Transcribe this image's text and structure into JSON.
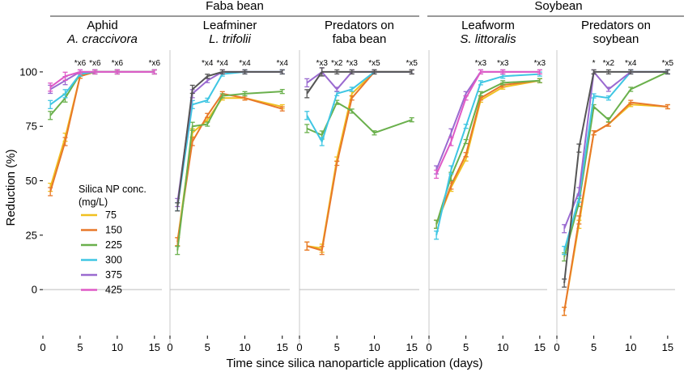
{
  "figure": {
    "crop_titles": [
      "Faba bean",
      "Soybean"
    ],
    "ylabel": "Reduction (%)",
    "xlabel": "Time since silica nanoparticle application (days)",
    "legend_title": [
      "Silica NP conc.",
      "(mg/L)"
    ]
  },
  "chart_data": [
    {
      "type": "line",
      "title": [
        "Aphid",
        "A. craccivora"
      ],
      "crop": "Faba bean",
      "ylim": [
        -20,
        110
      ],
      "xlim": [
        0,
        16
      ],
      "yticks": [
        "0",
        "25",
        "50",
        "75",
        "100"
      ],
      "xticks": [
        "0",
        "5",
        "10",
        "15"
      ],
      "x": [
        1,
        3,
        5,
        7,
        10,
        15
      ],
      "series": [
        {
          "name": "75",
          "color": "#f0c020",
          "values": [
            47,
            70,
            98,
            100,
            100,
            100
          ]
        },
        {
          "name": "150",
          "color": "#e8782a",
          "values": [
            45,
            68,
            98,
            100,
            100,
            100
          ]
        },
        {
          "name": "225",
          "color": "#6ab04c",
          "values": [
            80,
            88,
            99,
            100,
            100,
            100
          ]
        },
        {
          "name": "300",
          "color": "#3fc6e3",
          "values": [
            85,
            90,
            99,
            100,
            100,
            100
          ]
        },
        {
          "name": "375",
          "color": "#9a6ad0",
          "values": [
            92,
            96,
            100,
            100,
            100,
            100
          ]
        },
        {
          "name": "425",
          "color": "#df5ac6",
          "values": [
            93,
            98,
            100,
            100,
            100,
            100
          ]
        }
      ],
      "annotations": [
        "*x6",
        "*x6",
        "*x6",
        "*x6"
      ]
    },
    {
      "type": "line",
      "title": [
        "Leafminer",
        "L. trifolii"
      ],
      "crop": "Faba bean",
      "ylim": [
        -20,
        110
      ],
      "xlim": [
        0,
        16
      ],
      "yticks": [],
      "xticks": [
        "0",
        "5",
        "10",
        "15"
      ],
      "x": [
        1,
        3,
        5,
        7,
        10,
        15
      ],
      "series": [
        {
          "name": "75",
          "color": "#f0c020",
          "values": [
            22,
            72,
            78,
            88,
            88,
            84
          ]
        },
        {
          "name": "150",
          "color": "#e8782a",
          "values": [
            22,
            68,
            80,
            90,
            88,
            83
          ]
        },
        {
          "name": "225",
          "color": "#6ab04c",
          "values": [
            18,
            75,
            76,
            89,
            90,
            91
          ]
        },
        {
          "name": "300",
          "color": "#3fc6e3",
          "values": [
            38,
            85,
            87,
            99,
            100,
            100
          ]
        },
        {
          "name": "375",
          "color": "#9a6ad0",
          "values": [
            40,
            90,
            96,
            100,
            100,
            100
          ]
        },
        {
          "name": "425",
          "color": "#555555",
          "values": [
            38,
            92,
            98,
            100,
            100,
            100
          ]
        }
      ],
      "annotations": [
        "*x4",
        "*x4",
        "*x4",
        "*x4"
      ]
    },
    {
      "type": "line",
      "title": [
        "Predators on",
        "faba bean"
      ],
      "crop": "Faba bean",
      "ylim": [
        -20,
        110
      ],
      "xlim": [
        0,
        16
      ],
      "yticks": [],
      "xticks": [
        "0",
        "5",
        "10",
        "15"
      ],
      "x": [
        1,
        3,
        5,
        7,
        10,
        15
      ],
      "series": [
        {
          "name": "75",
          "color": "#f0c020",
          "values": [
            20,
            19,
            60,
            90,
            100,
            100
          ]
        },
        {
          "name": "150",
          "color": "#e8782a",
          "values": [
            20,
            18,
            58,
            88,
            100,
            100
          ]
        },
        {
          "name": "225",
          "color": "#6ab04c",
          "values": [
            74,
            71,
            86,
            82,
            72,
            78
          ]
        },
        {
          "name": "300",
          "color": "#3fc6e3",
          "values": [
            80,
            68,
            90,
            92,
            100,
            100
          ]
        },
        {
          "name": "375",
          "color": "#9a6ad0",
          "values": [
            95,
            100,
            92,
            100,
            100,
            100
          ]
        },
        {
          "name": "425",
          "color": "#555555",
          "values": [
            90,
            100,
            100,
            100,
            100,
            100
          ]
        }
      ],
      "annotations": [
        "*x3",
        "*x2",
        "*x3",
        "*x5",
        "*x5"
      ]
    },
    {
      "type": "line",
      "title": [
        "Leafworm",
        "S. littoralis"
      ],
      "crop": "Soybean",
      "ylim": [
        -20,
        110
      ],
      "xlim": [
        0,
        16
      ],
      "yticks": [],
      "xticks": [
        "0",
        "5",
        "10",
        "15"
      ],
      "x": [
        1,
        3,
        5,
        7,
        10,
        15
      ],
      "series": [
        {
          "name": "75",
          "color": "#f0c020",
          "values": [
            30,
            47,
            60,
            87,
            93,
            96
          ]
        },
        {
          "name": "150",
          "color": "#e8782a",
          "values": [
            30,
            48,
            62,
            88,
            94,
            96
          ]
        },
        {
          "name": "225",
          "color": "#6ab04c",
          "values": [
            30,
            52,
            68,
            90,
            95,
            96
          ]
        },
        {
          "name": "300",
          "color": "#3fc6e3",
          "values": [
            25,
            55,
            75,
            95,
            98,
            99
          ]
        },
        {
          "name": "375",
          "color": "#9a6ad0",
          "values": [
            55,
            72,
            90,
            100,
            100,
            100
          ]
        },
        {
          "name": "425",
          "color": "#df5ac6",
          "values": [
            53,
            68,
            88,
            100,
            100,
            100
          ]
        }
      ],
      "annotations": [
        "*x3",
        "*x3",
        "*x3"
      ]
    },
    {
      "type": "line",
      "title": [
        "Predators on",
        "soybean"
      ],
      "crop": "Soybean",
      "ylim": [
        -20,
        110
      ],
      "xlim": [
        0,
        16
      ],
      "yticks": [],
      "xticks": [
        "0",
        "5",
        "10",
        "15"
      ],
      "x": [
        1,
        3,
        5,
        7,
        10,
        15
      ],
      "series": [
        {
          "name": "75",
          "color": "#f0c020",
          "values": [
            -10,
            30,
            72,
            76,
            85,
            84
          ]
        },
        {
          "name": "150",
          "color": "#e8782a",
          "values": [
            -10,
            32,
            72,
            76,
            86,
            84
          ]
        },
        {
          "name": "225",
          "color": "#6ab04c",
          "values": [
            15,
            40,
            84,
            78,
            92,
            100
          ]
        },
        {
          "name": "300",
          "color": "#3fc6e3",
          "values": [
            18,
            42,
            89,
            88,
            100,
            100
          ]
        },
        {
          "name": "375",
          "color": "#9a6ad0",
          "values": [
            28,
            45,
            100,
            92,
            100,
            100
          ]
        },
        {
          "name": "425",
          "color": "#555555",
          "values": [
            3,
            65,
            100,
            100,
            100,
            100
          ]
        }
      ],
      "annotations": [
        "*",
        "*x2",
        "*x4",
        "*x5"
      ]
    }
  ]
}
